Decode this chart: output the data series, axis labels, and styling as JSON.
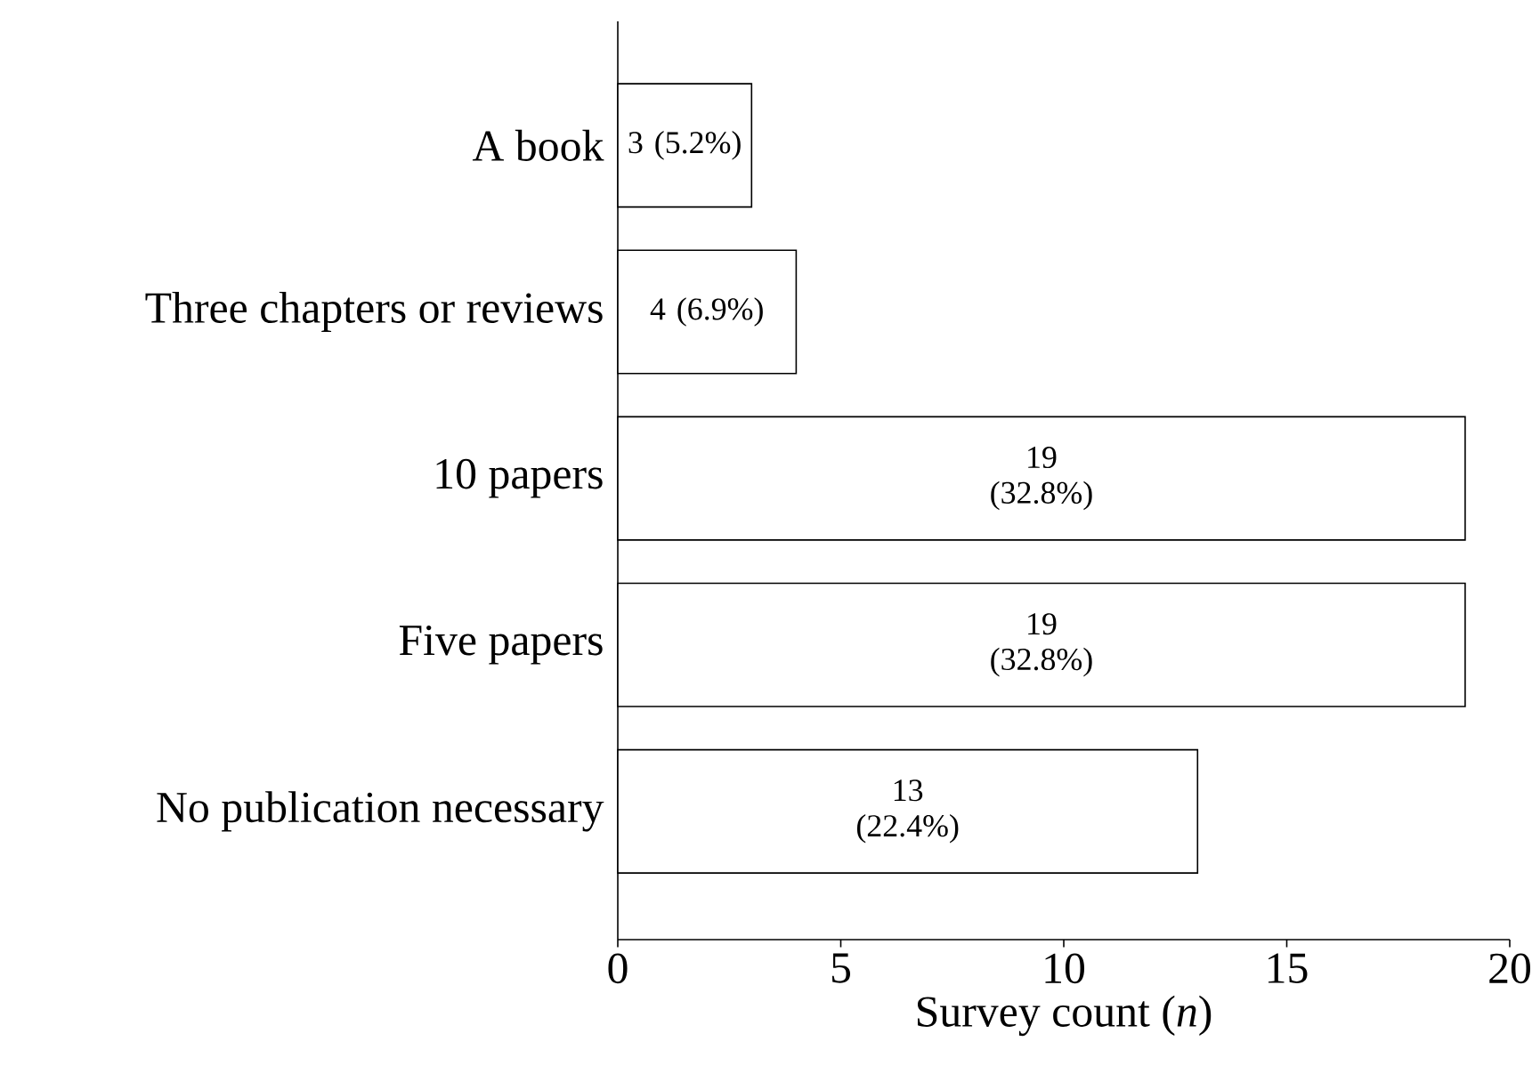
{
  "chart_data": {
    "type": "bar",
    "orientation": "horizontal",
    "categories": [
      "A book",
      "Three chapters or reviews",
      "10 papers",
      "Five papers",
      "No publication necessary"
    ],
    "values": [
      3,
      4,
      19,
      19,
      13
    ],
    "value_labels": [
      "3 (5.2%)",
      "4 (6.9%)",
      "19 (32.8%)",
      "19 (32.8%)",
      "13 (22.4%)"
    ],
    "color": "#ffffff",
    "xlabel": "Survey count (*n*)",
    "xlim": [
      0,
      20
    ],
    "xticks": [
      0,
      5,
      10,
      15,
      20
    ]
  }
}
